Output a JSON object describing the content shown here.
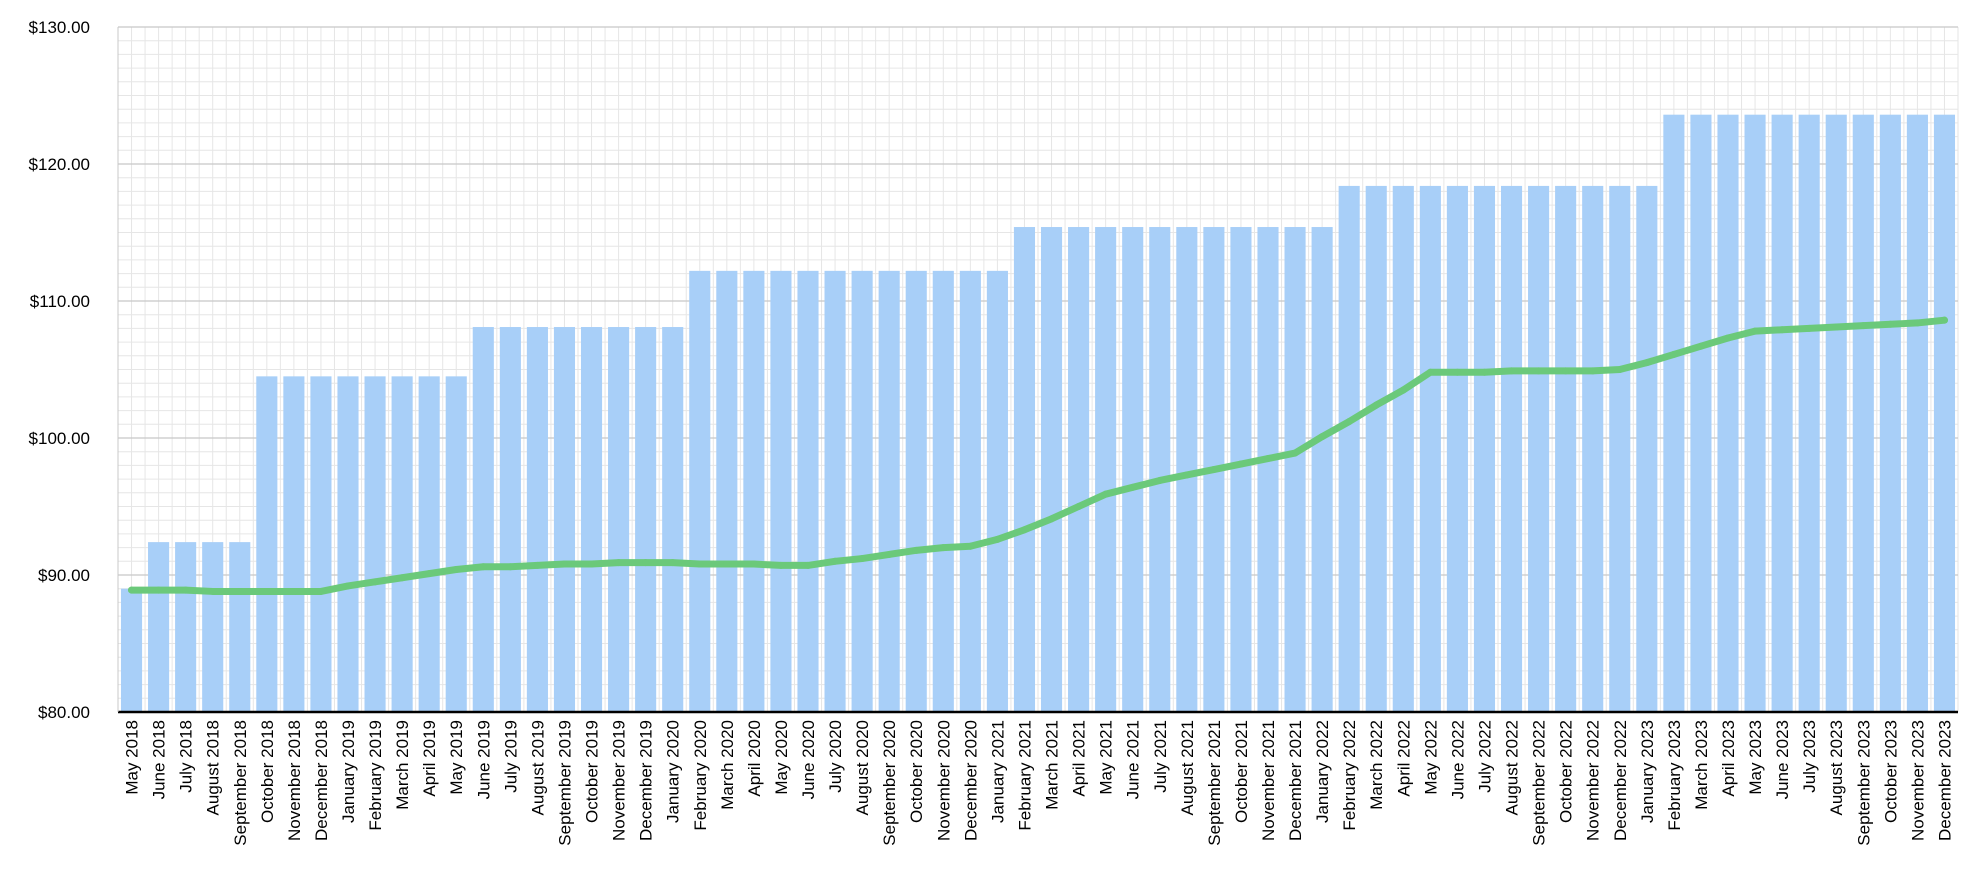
{
  "chart_data": {
    "type": "bar",
    "title": "",
    "xlabel": "",
    "ylabel": "",
    "ylim": [
      80,
      130
    ],
    "y_ticks": [
      "$80.00",
      "$90.00",
      "$100.00",
      "$110.00",
      "$120.00",
      "$130.00"
    ],
    "y_tick_values": [
      80,
      90,
      100,
      110,
      120,
      130
    ],
    "grid": true,
    "legend": "none",
    "categories": [
      "May 2018",
      "June 2018",
      "July 2018",
      "August 2018",
      "September 2018",
      "October 2018",
      "November 2018",
      "December 2018",
      "January 2019",
      "February 2019",
      "March 2019",
      "April 2019",
      "May 2019",
      "June 2019",
      "July 2019",
      "August 2019",
      "September 2019",
      "October 2019",
      "November 2019",
      "December 2019",
      "January 2020",
      "February 2020",
      "March 2020",
      "April 2020",
      "May 2020",
      "June 2020",
      "July 2020",
      "August 2020",
      "September 2020",
      "October 2020",
      "November 2020",
      "December 2020",
      "January 2021",
      "February 2021",
      "March 2021",
      "April 2021",
      "May 2021",
      "June 2021",
      "July 2021",
      "August 2021",
      "September 2021",
      "October 2021",
      "November 2021",
      "December 2021",
      "January 2022",
      "February 2022",
      "March 2022",
      "April 2022",
      "May 2022",
      "June 2022",
      "July 2022",
      "August 2022",
      "September 2022",
      "October 2022",
      "November 2022",
      "December 2022",
      "January 2023",
      "February 2023",
      "March 2023",
      "April 2023",
      "May 2023",
      "June 2023",
      "July 2023",
      "August 2023",
      "September 2023",
      "October 2023",
      "November 2023",
      "December 2023"
    ],
    "series": [
      {
        "type": "bar",
        "color": "#a8cff8",
        "values": [
          89.0,
          92.4,
          92.4,
          92.4,
          92.4,
          104.5,
          104.5,
          104.5,
          104.5,
          104.5,
          104.5,
          104.5,
          104.5,
          108.1,
          108.1,
          108.1,
          108.1,
          108.1,
          108.1,
          108.1,
          108.1,
          112.2,
          112.2,
          112.2,
          112.2,
          112.2,
          112.2,
          112.2,
          112.2,
          112.2,
          112.2,
          112.2,
          112.2,
          115.4,
          115.4,
          115.4,
          115.4,
          115.4,
          115.4,
          115.4,
          115.4,
          115.4,
          115.4,
          115.4,
          115.4,
          118.4,
          118.4,
          118.4,
          118.4,
          118.4,
          118.4,
          118.4,
          118.4,
          118.4,
          118.4,
          118.4,
          118.4,
          123.6,
          123.6,
          123.6,
          123.6,
          123.6,
          123.6,
          123.6,
          123.6,
          123.6,
          123.6,
          123.6
        ]
      },
      {
        "type": "line",
        "color": "#6bc97a",
        "values": [
          88.9,
          88.9,
          88.9,
          88.8,
          88.8,
          88.8,
          88.8,
          88.8,
          89.2,
          89.5,
          89.8,
          90.1,
          90.4,
          90.6,
          90.6,
          90.7,
          90.8,
          90.8,
          90.9,
          90.9,
          90.9,
          90.8,
          90.8,
          90.8,
          90.7,
          90.7,
          91.0,
          91.2,
          91.5,
          91.8,
          92.0,
          92.1,
          92.6,
          93.3,
          94.1,
          95.0,
          95.9,
          96.4,
          96.9,
          97.3,
          97.7,
          98.1,
          98.5,
          98.9,
          100.1,
          101.2,
          102.4,
          103.5,
          104.8,
          104.8,
          104.8,
          104.9,
          104.9,
          104.9,
          104.9,
          105.0,
          105.5,
          106.1,
          106.7,
          107.3,
          107.8,
          107.9,
          108.0,
          108.1,
          108.2,
          108.3,
          108.4,
          108.6
        ]
      }
    ]
  }
}
